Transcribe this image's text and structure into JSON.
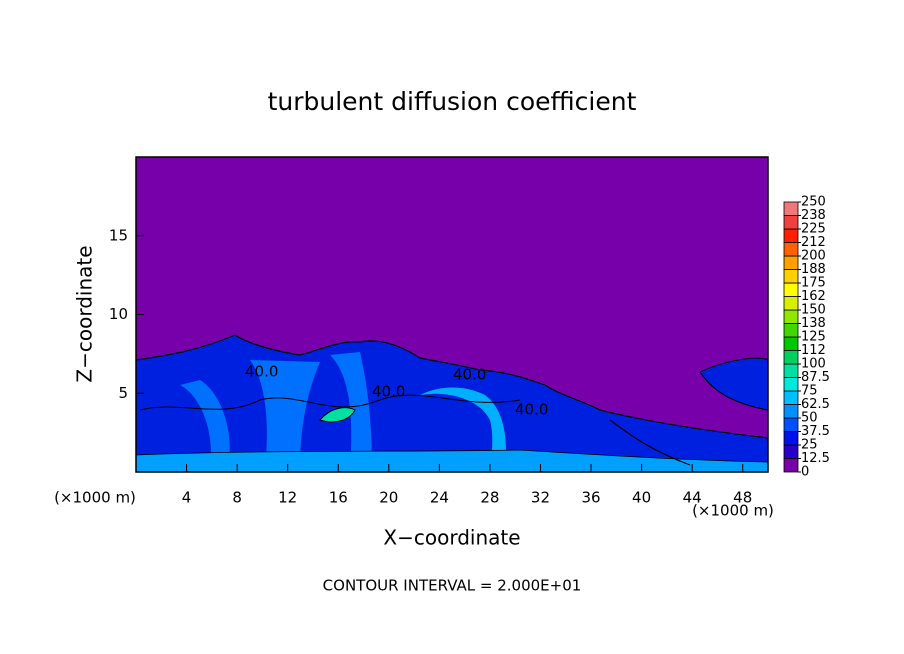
{
  "chart_data": {
    "type": "contour",
    "title": "turbulent diffusion coefficient",
    "xlabel": "X−coordinate",
    "ylabel": "Z−coordinate",
    "x_unit": "(×1000 m)",
    "y_unit": "(×1000 m)",
    "footnote": "CONTOUR INTERVAL = 2.000E+01",
    "annotations": [
      "40.0",
      "40.0",
      "40.0",
      "40.0"
    ],
    "xlim": [
      0,
      50
    ],
    "ylim": [
      0,
      20
    ],
    "xticks": [
      4,
      8,
      12,
      16,
      20,
      24,
      28,
      32,
      36,
      40,
      44,
      48
    ],
    "yticks": [
      5,
      10,
      15
    ],
    "colorbar": {
      "ticks": [
        0,
        12.5,
        25,
        37.5,
        50,
        62.5,
        75,
        87.5,
        100,
        {
          "value": 112.5,
          "label": "112"
        },
        125,
        {
          "value": 137.5,
          "label": "138"
        },
        150,
        {
          "value": 162.5,
          "label": "162"
        },
        175,
        {
          "value": 187.5,
          "label": "188"
        },
        200,
        {
          "value": 212.5,
          "label": "212"
        },
        225,
        {
          "value": 237.5,
          "label": "238"
        },
        250
      ],
      "colors": [
        "#7800aa",
        "#2a00c8",
        "#0010e8",
        "#0050ff",
        "#0090ff",
        "#00c0ff",
        "#00e8e0",
        "#00e0a0",
        "#00d060",
        "#00c800",
        "#40d800",
        "#90e800",
        "#d8f000",
        "#ffff00",
        "#ffd000",
        "#ffa000",
        "#ff6000",
        "#ff2000",
        "#f04040",
        "#f07878"
      ]
    }
  }
}
